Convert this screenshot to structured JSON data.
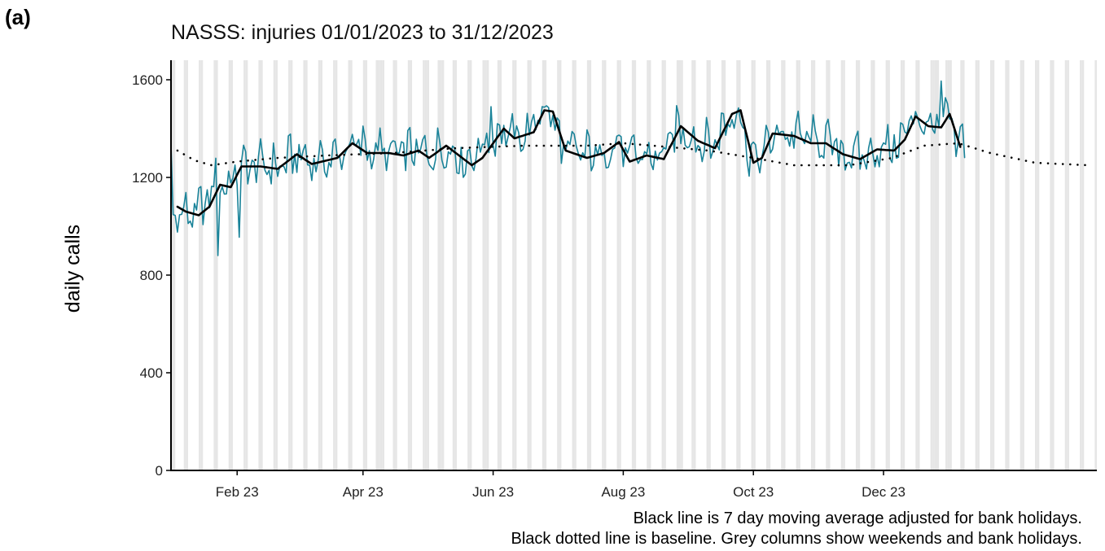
{
  "panel_label": "(a)",
  "chart_data": {
    "type": "line",
    "title": "NASSS: injuries 01/01/2023 to 31/12/2023",
    "xlabel": "",
    "ylabel": "daily calls",
    "ylim": [
      0,
      1680
    ],
    "xlim": [
      "2023-01-01",
      "2024-03-10"
    ],
    "yticks": [
      0,
      400,
      800,
      1200,
      1600
    ],
    "xticks": [
      {
        "date": "2023-02-01",
        "label": "Feb 23"
      },
      {
        "date": "2023-04-01",
        "label": "Apr 23"
      },
      {
        "date": "2023-06-01",
        "label": "Jun 23"
      },
      {
        "date": "2023-08-01",
        "label": "Aug 23"
      },
      {
        "date": "2023-10-01",
        "label": "Oct 23"
      },
      {
        "date": "2023-12-01",
        "label": "Dec 23"
      }
    ],
    "grid": false,
    "legend": "none",
    "shading": {
      "description": "weekends and bank holidays",
      "color": "#e6e6e6",
      "bank_holidays": [
        "2023-01-02",
        "2023-04-07",
        "2023-04-10",
        "2023-05-01",
        "2023-05-08",
        "2023-05-29",
        "2023-08-28",
        "2023-12-25",
        "2023-12-26",
        "2024-01-01"
      ]
    },
    "series": [
      {
        "name": "",
        "style": "daily",
        "color": "#1a8399",
        "x_start": "2023-01-01",
        "x_end": "2024-01-08",
        "knots": [
          [
            "2023-01-01",
            1290
          ],
          [
            "2023-01-02",
            1060
          ],
          [
            "2023-01-05",
            1050
          ],
          [
            "2023-01-12",
            1045
          ],
          [
            "2023-01-17",
            1090
          ],
          [
            "2023-01-22",
            1180
          ],
          [
            "2023-01-27",
            1160
          ],
          [
            "2023-02-03",
            1240
          ],
          [
            "2023-02-12",
            1250
          ],
          [
            "2023-02-20",
            1240
          ],
          [
            "2023-03-01",
            1290
          ],
          [
            "2023-03-10",
            1260
          ],
          [
            "2023-03-20",
            1280
          ],
          [
            "2023-03-27",
            1335
          ],
          [
            "2023-04-05",
            1310
          ],
          [
            "2023-04-15",
            1295
          ],
          [
            "2023-04-25",
            1310
          ],
          [
            "2023-05-01",
            1290
          ],
          [
            "2023-05-10",
            1320
          ],
          [
            "2023-05-15",
            1290
          ],
          [
            "2023-05-20",
            1260
          ],
          [
            "2023-05-25",
            1320
          ],
          [
            "2023-06-01",
            1345
          ],
          [
            "2023-06-05",
            1400
          ],
          [
            "2023-06-10",
            1360
          ],
          [
            "2023-06-18",
            1380
          ],
          [
            "2023-06-23",
            1470
          ],
          [
            "2023-06-27",
            1480
          ],
          [
            "2023-07-04",
            1310
          ],
          [
            "2023-07-12",
            1300
          ],
          [
            "2023-07-20",
            1290
          ],
          [
            "2023-07-30",
            1340
          ],
          [
            "2023-08-03",
            1280
          ],
          [
            "2023-08-10",
            1290
          ],
          [
            "2023-08-18",
            1280
          ],
          [
            "2023-08-27",
            1400
          ],
          [
            "2023-09-05",
            1350
          ],
          [
            "2023-09-12",
            1330
          ],
          [
            "2023-09-21",
            1460
          ],
          [
            "2023-09-25",
            1470
          ],
          [
            "2023-09-29",
            1280
          ],
          [
            "2023-10-05",
            1290
          ],
          [
            "2023-10-12",
            1380
          ],
          [
            "2023-10-22",
            1370
          ],
          [
            "2023-10-30",
            1350
          ],
          [
            "2023-11-05",
            1340
          ],
          [
            "2023-11-12",
            1300
          ],
          [
            "2023-11-20",
            1280
          ],
          [
            "2023-11-28",
            1310
          ],
          [
            "2023-12-05",
            1320
          ],
          [
            "2023-12-10",
            1360
          ],
          [
            "2023-12-15",
            1450
          ],
          [
            "2023-12-22",
            1410
          ],
          [
            "2023-12-28",
            1410
          ],
          [
            "2024-01-01",
            1450
          ],
          [
            "2024-01-04",
            1320
          ],
          [
            "2024-01-08",
            1350
          ]
        ]
      },
      {
        "name": "",
        "style": "moving-average",
        "color": "#000000",
        "x_start": "2023-01-04",
        "x_end": "2024-01-06",
        "knots": [
          [
            "2023-01-04",
            1080
          ],
          [
            "2023-01-08",
            1060
          ],
          [
            "2023-01-14",
            1045
          ],
          [
            "2023-01-19",
            1080
          ],
          [
            "2023-01-24",
            1170
          ],
          [
            "2023-01-29",
            1160
          ],
          [
            "2023-02-03",
            1245
          ],
          [
            "2023-02-12",
            1245
          ],
          [
            "2023-02-20",
            1235
          ],
          [
            "2023-03-01",
            1295
          ],
          [
            "2023-03-08",
            1255
          ],
          [
            "2023-03-20",
            1280
          ],
          [
            "2023-03-27",
            1340
          ],
          [
            "2023-04-03",
            1300
          ],
          [
            "2023-04-13",
            1300
          ],
          [
            "2023-04-20",
            1290
          ],
          [
            "2023-04-27",
            1310
          ],
          [
            "2023-05-02",
            1280
          ],
          [
            "2023-05-10",
            1330
          ],
          [
            "2023-05-16",
            1290
          ],
          [
            "2023-05-22",
            1250
          ],
          [
            "2023-05-27",
            1280
          ],
          [
            "2023-06-01",
            1340
          ],
          [
            "2023-06-06",
            1400
          ],
          [
            "2023-06-11",
            1360
          ],
          [
            "2023-06-20",
            1385
          ],
          [
            "2023-06-25",
            1475
          ],
          [
            "2023-06-29",
            1470
          ],
          [
            "2023-07-05",
            1310
          ],
          [
            "2023-07-15",
            1280
          ],
          [
            "2023-07-23",
            1300
          ],
          [
            "2023-07-30",
            1345
          ],
          [
            "2023-08-04",
            1265
          ],
          [
            "2023-08-12",
            1290
          ],
          [
            "2023-08-20",
            1275
          ],
          [
            "2023-08-28",
            1410
          ],
          [
            "2023-09-05",
            1350
          ],
          [
            "2023-09-13",
            1320
          ],
          [
            "2023-09-21",
            1460
          ],
          [
            "2023-09-25",
            1475
          ],
          [
            "2023-10-01",
            1260
          ],
          [
            "2023-10-05",
            1280
          ],
          [
            "2023-10-10",
            1380
          ],
          [
            "2023-10-20",
            1370
          ],
          [
            "2023-10-28",
            1340
          ],
          [
            "2023-11-04",
            1340
          ],
          [
            "2023-11-12",
            1295
          ],
          [
            "2023-11-20",
            1275
          ],
          [
            "2023-11-28",
            1315
          ],
          [
            "2023-12-06",
            1310
          ],
          [
            "2023-12-11",
            1355
          ],
          [
            "2023-12-16",
            1450
          ],
          [
            "2023-12-22",
            1410
          ],
          [
            "2023-12-28",
            1405
          ],
          [
            "2024-01-01",
            1460
          ],
          [
            "2024-01-06",
            1325
          ]
        ]
      },
      {
        "name": "",
        "style": "baseline-dotted",
        "color": "#000000",
        "x_start": "2023-01-04",
        "x_end": "2024-03-06",
        "knots": [
          [
            "2023-01-04",
            1310
          ],
          [
            "2023-01-12",
            1270
          ],
          [
            "2023-01-20",
            1250
          ],
          [
            "2023-02-01",
            1265
          ],
          [
            "2023-02-20",
            1280
          ],
          [
            "2023-03-15",
            1290
          ],
          [
            "2023-04-15",
            1300
          ],
          [
            "2023-05-15",
            1320
          ],
          [
            "2023-06-15",
            1330
          ],
          [
            "2023-07-15",
            1330
          ],
          [
            "2023-08-01",
            1340
          ],
          [
            "2023-08-15",
            1330
          ],
          [
            "2023-09-10",
            1310
          ],
          [
            "2023-10-01",
            1280
          ],
          [
            "2023-10-20",
            1250
          ],
          [
            "2023-11-15",
            1250
          ],
          [
            "2023-12-05",
            1280
          ],
          [
            "2023-12-20",
            1330
          ],
          [
            "2024-01-05",
            1340
          ],
          [
            "2024-01-20",
            1300
          ],
          [
            "2024-02-10",
            1260
          ],
          [
            "2024-03-06",
            1250
          ]
        ]
      }
    ]
  },
  "caption": {
    "line1": "Black line is 7 day moving average adjusted for bank holidays.",
    "line2": "Black dotted line is baseline. Grey columns show weekends and bank holidays."
  }
}
